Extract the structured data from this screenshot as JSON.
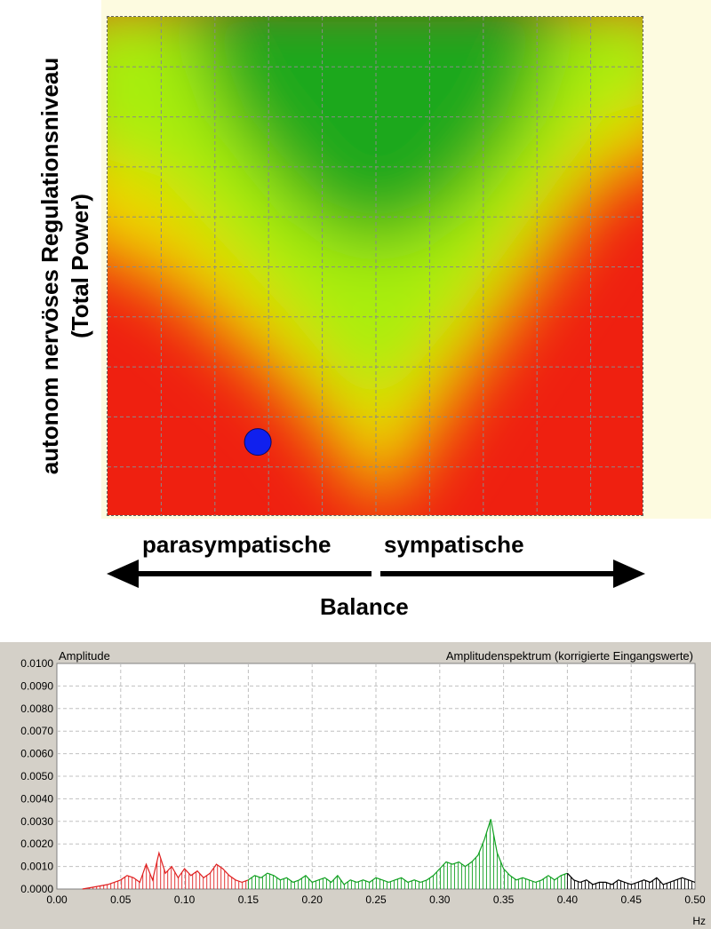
{
  "regulation_panel": {
    "y_label_line1": "autonom nervöses Regulationsniveau",
    "y_label_line2": "(Total Power)",
    "left_label": "parasympatische",
    "right_label": "sympatische",
    "bottom_label": "Balance",
    "colors": {
      "good": "#1aa81a",
      "medium": "#a8ee0a",
      "warn": "#f0d400",
      "bad": "#ef2010",
      "marker": "#1020ee"
    },
    "marker": {
      "balance_fraction": 0.28,
      "level_fraction": 0.15
    }
  },
  "chart_data": {
    "type": "area",
    "title": "Amplitudenspektrum (korrigierte Eingangswerte)",
    "ylabel": "Amplitude",
    "xlabel": "Hz",
    "xlim": [
      0.0,
      0.5
    ],
    "ylim": [
      0.0,
      0.01
    ],
    "x_ticks": [
      "0.00",
      "0.05",
      "0.10",
      "0.15",
      "0.20",
      "0.25",
      "0.30",
      "0.35",
      "0.40",
      "0.45",
      "0.50"
    ],
    "y_ticks": [
      "0.0000",
      "0.0010",
      "0.0020",
      "0.0030",
      "0.0040",
      "0.0050",
      "0.0060",
      "0.0070",
      "0.0080",
      "0.0090",
      "0.0100"
    ],
    "grid": true,
    "series": [
      {
        "color": "#e02020",
        "x": [
          0.02,
          0.03,
          0.04,
          0.045,
          0.05,
          0.055,
          0.06,
          0.065,
          0.07,
          0.075,
          0.08,
          0.085,
          0.09,
          0.095,
          0.1,
          0.105,
          0.11,
          0.115,
          0.12,
          0.125,
          0.13,
          0.135,
          0.14,
          0.145,
          0.15
        ],
        "y": [
          0.0,
          0.0001,
          0.0002,
          0.0003,
          0.0004,
          0.0006,
          0.0005,
          0.0003,
          0.0011,
          0.0004,
          0.0016,
          0.0007,
          0.001,
          0.0005,
          0.0009,
          0.0006,
          0.0008,
          0.0005,
          0.0007,
          0.0011,
          0.0009,
          0.0006,
          0.0004,
          0.0003,
          0.0004
        ]
      },
      {
        "color": "#10a020",
        "x": [
          0.15,
          0.155,
          0.16,
          0.165,
          0.17,
          0.175,
          0.18,
          0.185,
          0.19,
          0.195,
          0.2,
          0.205,
          0.21,
          0.215,
          0.22,
          0.225,
          0.23,
          0.235,
          0.24,
          0.245,
          0.25,
          0.255,
          0.26,
          0.265,
          0.27,
          0.275,
          0.28,
          0.285,
          0.29,
          0.295,
          0.3,
          0.305,
          0.31,
          0.315,
          0.32,
          0.325,
          0.33,
          0.335,
          0.34,
          0.345,
          0.35,
          0.355,
          0.36,
          0.365,
          0.37,
          0.375,
          0.38,
          0.385,
          0.39,
          0.395,
          0.4
        ],
        "y": [
          0.0004,
          0.0006,
          0.0005,
          0.0007,
          0.0006,
          0.0004,
          0.0005,
          0.0003,
          0.0004,
          0.0006,
          0.0003,
          0.0004,
          0.0005,
          0.0003,
          0.0006,
          0.0002,
          0.0004,
          0.0003,
          0.0004,
          0.0003,
          0.0005,
          0.0004,
          0.0003,
          0.0004,
          0.0005,
          0.0003,
          0.0004,
          0.0003,
          0.0004,
          0.0006,
          0.0009,
          0.0012,
          0.0011,
          0.0012,
          0.001,
          0.0012,
          0.0015,
          0.0022,
          0.0031,
          0.0016,
          0.0009,
          0.0006,
          0.0004,
          0.0005,
          0.0004,
          0.0003,
          0.0004,
          0.0006,
          0.0004,
          0.0006,
          0.0007
        ]
      },
      {
        "color": "#000000",
        "x": [
          0.4,
          0.405,
          0.41,
          0.415,
          0.42,
          0.425,
          0.43,
          0.435,
          0.44,
          0.445,
          0.45,
          0.455,
          0.46,
          0.465,
          0.47,
          0.475,
          0.48,
          0.485,
          0.49,
          0.495,
          0.5
        ],
        "y": [
          0.0007,
          0.0004,
          0.0003,
          0.0004,
          0.0002,
          0.0003,
          0.0003,
          0.0002,
          0.0004,
          0.0003,
          0.0002,
          0.0003,
          0.0004,
          0.0003,
          0.0005,
          0.0002,
          0.0003,
          0.0004,
          0.0005,
          0.0004,
          0.0003
        ]
      }
    ]
  }
}
